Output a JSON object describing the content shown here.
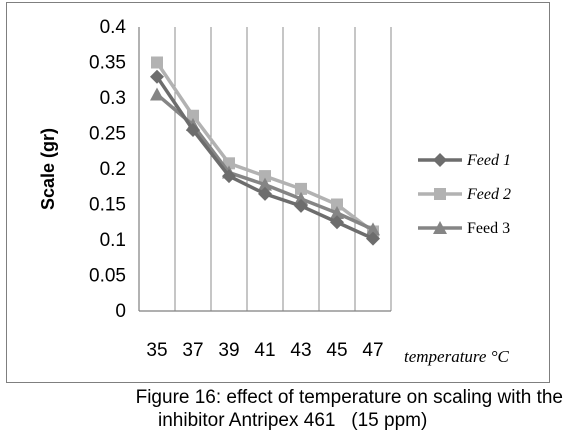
{
  "chart_data": {
    "type": "line",
    "x": [
      35,
      37,
      39,
      41,
      43,
      45,
      47
    ],
    "categories": [
      "35",
      "37",
      "39",
      "41",
      "43",
      "45",
      "47"
    ],
    "series": [
      {
        "name": "Feed 1",
        "values": [
          0.33,
          0.255,
          0.19,
          0.165,
          0.148,
          0.125,
          0.102
        ],
        "color": "#6d6d6d",
        "marker": "diamond"
      },
      {
        "name": "Feed 2",
        "values": [
          0.35,
          0.275,
          0.208,
          0.19,
          0.172,
          0.15,
          0.112
        ],
        "color": "#b2b2b2",
        "marker": "square"
      },
      {
        "name": "Feed 3",
        "values": [
          0.305,
          0.262,
          0.195,
          0.178,
          0.158,
          0.138,
          0.115
        ],
        "color": "#858585",
        "marker": "triangle"
      }
    ],
    "ylim": [
      0,
      0.4
    ],
    "yticks": [
      "0",
      "0.05",
      "0.1",
      "0.15",
      "0.2",
      "0.25",
      "0.3",
      "0.35",
      "0.4"
    ],
    "ylabel": "Scale (gr)",
    "xlabel": "temperature °C",
    "grid": "vertical",
    "legend": "right"
  },
  "caption": {
    "line1": "Figure 16: effect of temperature on scaling with the",
    "line2": "inhibitor Antripex 461   (15 ppm)"
  }
}
